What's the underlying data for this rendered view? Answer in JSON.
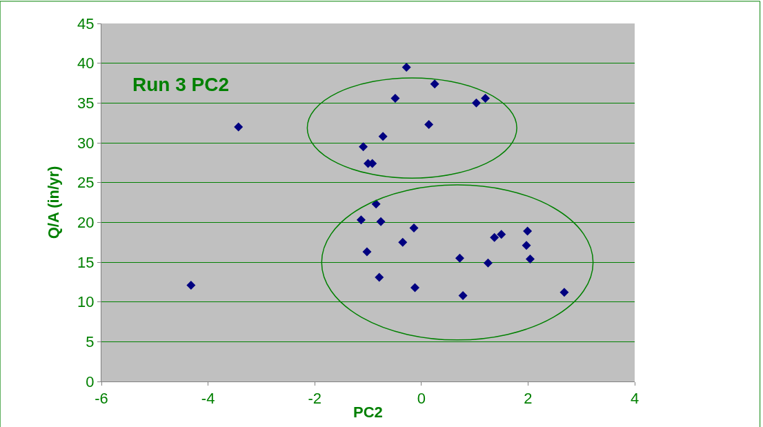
{
  "chart_data": {
    "type": "scatter",
    "title": "Run 3 PC2",
    "xlabel": "PC2",
    "ylabel": "Q/A (in/yr)",
    "x": [
      -0.28,
      0.25,
      -0.49,
      1.2,
      1.03,
      0.14,
      -3.43,
      -0.72,
      -1.09,
      -1.0,
      -0.92,
      -0.85,
      -1.13,
      -0.76,
      -0.14,
      1.99,
      1.5,
      1.37,
      -0.35,
      1.97,
      -1.02,
      0.72,
      2.04,
      1.25,
      -0.79,
      -4.32,
      -0.12,
      2.68,
      0.78
    ],
    "series": [
      {
        "color": "#000080",
        "values": [
          39.5,
          37.4,
          35.6,
          35.6,
          35.0,
          32.3,
          32.0,
          30.8,
          29.5,
          27.4,
          27.4,
          22.3,
          20.3,
          20.1,
          19.3,
          18.9,
          18.5,
          18.1,
          17.5,
          17.1,
          16.3,
          15.5,
          15.4,
          14.9,
          13.1,
          12.1,
          11.8,
          11.2,
          10.8
        ]
      }
    ],
    "xlim": [
      -6,
      4
    ],
    "xticks": [
      -6,
      -4,
      -2,
      0,
      2,
      4
    ],
    "ylim": [
      0,
      45
    ],
    "yticks": [
      0,
      5,
      10,
      15,
      20,
      25,
      30,
      35,
      40,
      45
    ],
    "grid": "y",
    "marker": "diamond"
  }
}
